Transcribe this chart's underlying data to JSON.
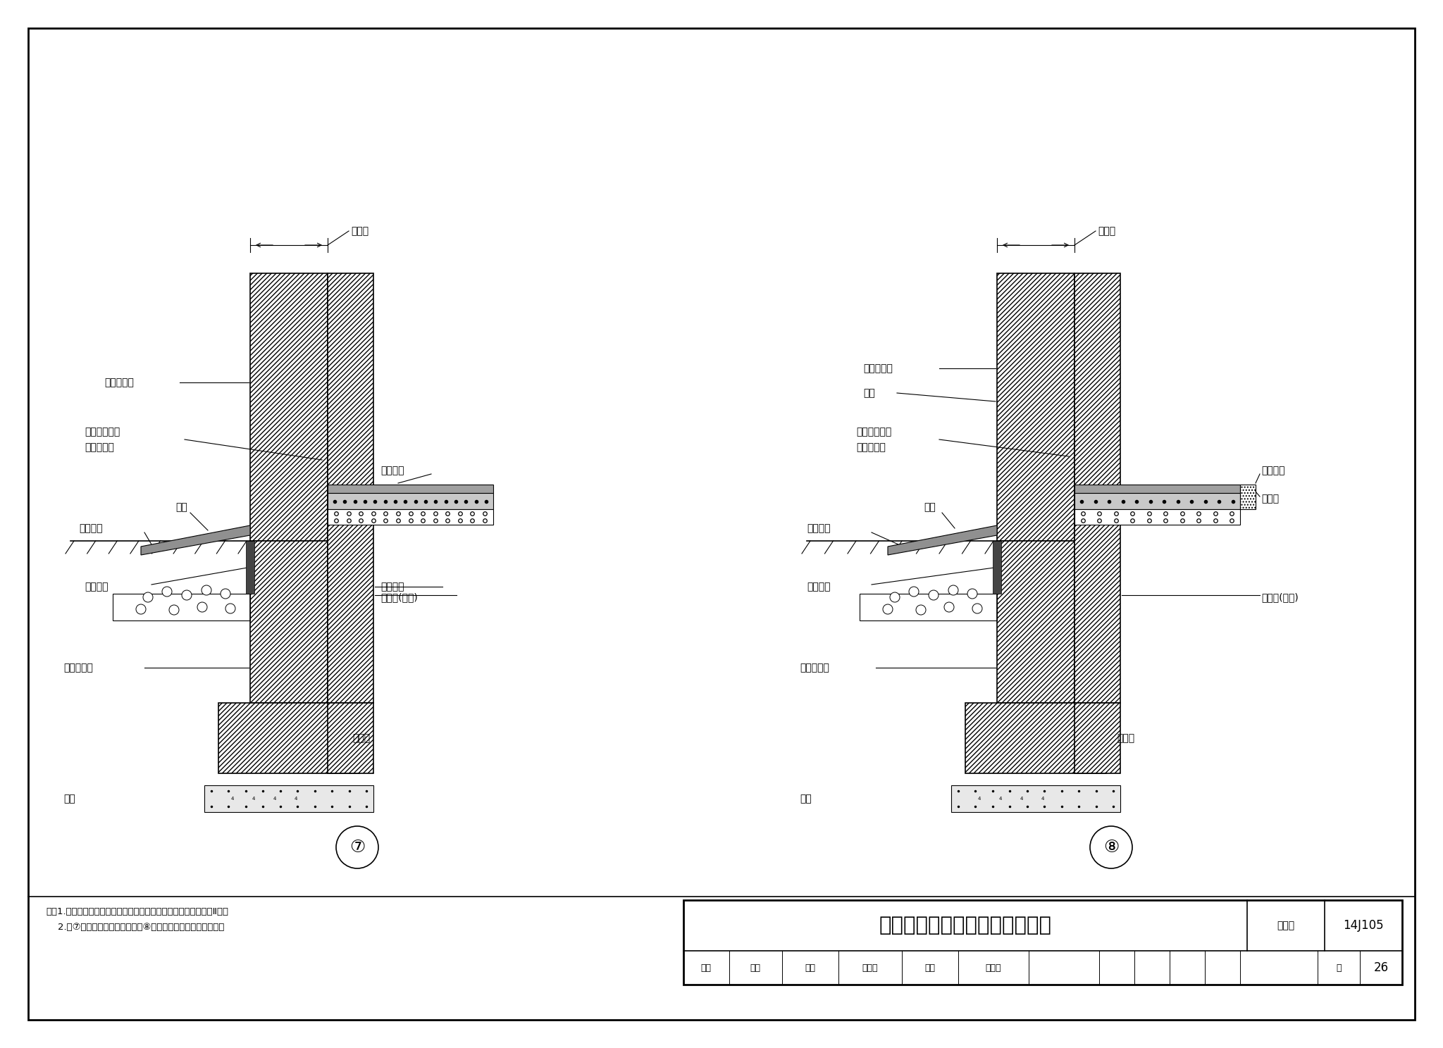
{
  "title": "自保温墙体外墙勒脚、防潮构造",
  "atlas_number": "14J105",
  "page": "26",
  "note_line1": "注：1.夏热冬冷地区、夏热冬暖地区，推荐采用页岩空心砖、砌块Ⅱ型。",
  "note_line2": "    2.图⑦为墙中圈梁回填地面，图⑧为墙中框架现浇板架空地面。",
  "border_color": "#000000",
  "bg_color": "#ffffff",
  "line_color": "#000000"
}
